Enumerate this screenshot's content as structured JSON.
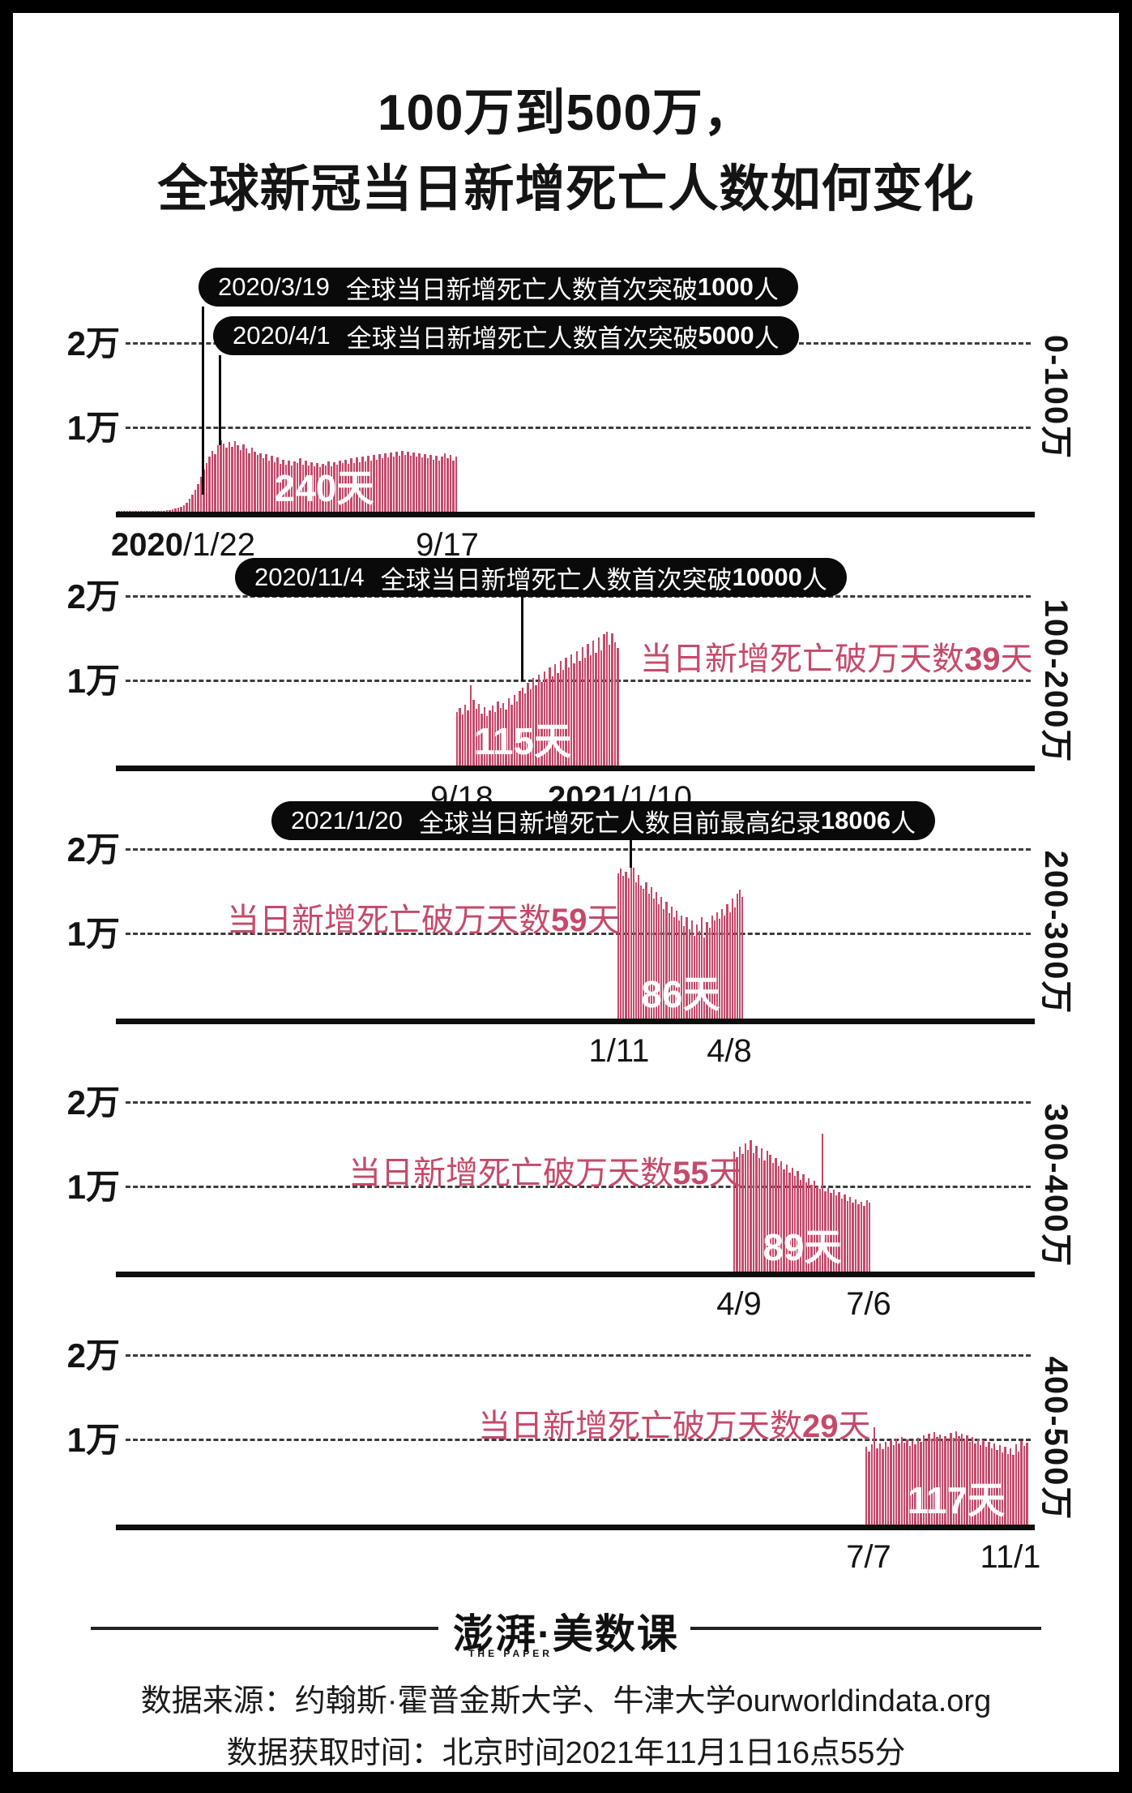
{
  "title": {
    "line1": "100万到500万，",
    "line2": "全球新冠当日新增死亡人数如何变化"
  },
  "colors": {
    "bar": "#c54a6a",
    "accent_text": "#c54a6a",
    "ink": "#111111"
  },
  "footer": {
    "brand": "澎湃·美数课",
    "brand_sub": "THE PAPER",
    "source": "数据来源：约翰斯·霍普金斯大学、牛津大学ourworldindata.org",
    "retrieved": "数据获取时间：北京时间2021年11月1日16点55分"
  },
  "chart_data": [
    {
      "type": "bar",
      "range_label": "0-100万",
      "y_ticks": [
        "2万",
        "1万"
      ],
      "ylim": [
        0,
        21000
      ],
      "x_start": {
        "bold": "2020",
        "rest": "/1/22"
      },
      "x_end": {
        "bold": "",
        "rest": "9/17"
      },
      "duration_label": "240天",
      "annotations": [
        {
          "date": "2020/3/19",
          "text": "全球当日新增死亡人数首次突破",
          "num": "1000",
          "suffix": "人"
        },
        {
          "date": "2020/4/1",
          "text": "全球当日新增死亡人数首次突破",
          "num": "5000",
          "suffix": "人"
        }
      ],
      "values": [
        15,
        25,
        20,
        30,
        25,
        35,
        40,
        30,
        45,
        50,
        60,
        55,
        70,
        80,
        90,
        110,
        130,
        160,
        200,
        260,
        340,
        450,
        600,
        800,
        1100,
        1500,
        2000,
        2600,
        3300,
        4100,
        5000,
        5800,
        6500,
        7200,
        6800,
        7900,
        8500,
        8100,
        7600,
        8300,
        7700,
        8400,
        7900,
        7300,
        8000,
        7500,
        6900,
        7600,
        7100,
        6700,
        6900,
        6300,
        6800,
        6100,
        6600,
        5900,
        6400,
        5700,
        6200,
        5600,
        6100,
        5500,
        6000,
        5800,
        6300,
        5600,
        6100,
        5500,
        5900,
        5400,
        5800,
        5300,
        5700,
        5500,
        6000,
        5400,
        5900,
        5600,
        6100,
        5800,
        6200,
        5700,
        6300,
        5800,
        6400,
        5900,
        6500,
        6000,
        6600,
        6100,
        6700,
        6200,
        6800,
        6300,
        6900,
        6400,
        7000,
        6500,
        7100,
        6600,
        7200,
        6700,
        7100,
        6600,
        7000,
        6500,
        6900,
        6400,
        6800,
        6300,
        6700,
        6200,
        6600,
        6100,
        6500,
        6900,
        6300,
        6700,
        6100,
        6500
      ]
    },
    {
      "type": "bar",
      "range_label": "100-200万",
      "y_ticks": [
        "2万",
        "1万"
      ],
      "ylim": [
        0,
        21000
      ],
      "x_start": {
        "bold": "",
        "rest": "9/18"
      },
      "x_end": {
        "bold": "2021",
        "rest": "/1/10"
      },
      "duration_label": "115天",
      "annotations": [
        {
          "date": "2020/11/4",
          "text": "全球当日新增死亡人数首次突破",
          "num": "10000",
          "suffix": "人"
        }
      ],
      "over10k_note": {
        "prefix": "当日新增死亡破万天数",
        "days": "39",
        "suffix": "天"
      },
      "values": [
        6300,
        6800,
        6100,
        7200,
        6500,
        9500,
        7800,
        6700,
        7300,
        6200,
        6900,
        5900,
        6500,
        7100,
        6300,
        7600,
        6800,
        7400,
        6600,
        8000,
        7200,
        8400,
        7600,
        8800,
        9200,
        8600,
        9800,
        9000,
        10400,
        9500,
        10800,
        9900,
        11200,
        10300,
        11600,
        10600,
        12000,
        11000,
        12400,
        11300,
        12800,
        11600,
        13200,
        12100,
        13600,
        12400,
        14000,
        12800,
        14400,
        13100,
        14800,
        13400,
        15200,
        13700,
        15600,
        15900,
        14300,
        15700,
        14600,
        13900
      ]
    },
    {
      "type": "bar",
      "range_label": "200-300万",
      "y_ticks": [
        "2万",
        "1万"
      ],
      "ylim": [
        0,
        21000
      ],
      "x_start": {
        "bold": "",
        "rest": "1/11"
      },
      "x_end": {
        "bold": "",
        "rest": "4/8"
      },
      "duration_label": "86天",
      "annotations": [
        {
          "date": "2021/1/20",
          "text": "全球当日新增死亡人数目前最高纪录",
          "num": "18006",
          "suffix": "人"
        }
      ],
      "over10k_note": {
        "prefix": "当日新增死亡破万天数",
        "days": "59",
        "suffix": "天"
      },
      "values": [
        17200,
        17800,
        16900,
        17400,
        16600,
        18006,
        17900,
        16200,
        17000,
        15800,
        15400,
        16200,
        14800,
        15600,
        14200,
        15000,
        13600,
        14400,
        13000,
        13800,
        12500,
        13300,
        12000,
        12800,
        11600,
        12200,
        11000,
        12000,
        10600,
        11600,
        9800,
        11200,
        10400,
        12000,
        9600,
        11400,
        10800,
        12200,
        11600,
        12600,
        11800,
        13000,
        12200,
        13600,
        12600,
        14200,
        13200,
        14800,
        15300,
        14400
      ]
    },
    {
      "type": "bar",
      "range_label": "300-400万",
      "y_ticks": [
        "2万",
        "1万"
      ],
      "ylim": [
        0,
        21000
      ],
      "x_start": {
        "bold": "",
        "rest": "4/9"
      },
      "x_end": {
        "bold": "",
        "rest": "7/6"
      },
      "duration_label": "89天",
      "over10k_note": {
        "prefix": "当日新增死亡破万天数",
        "days": "55",
        "suffix": "天"
      },
      "values": [
        14200,
        13600,
        14800,
        13900,
        15200,
        14400,
        15600,
        14000,
        14900,
        13500,
        14600,
        13200,
        14300,
        13800,
        12900,
        13500,
        12500,
        13100,
        12100,
        12700,
        11700,
        12300,
        11300,
        11900,
        10900,
        11500,
        10600,
        11100,
        10300,
        10800,
        10100,
        9800,
        16300,
        9500,
        9900,
        9300,
        9700,
        9000,
        9400,
        8700,
        9100,
        8400,
        8800,
        8200,
        8600,
        8000,
        8300,
        7800,
        8500,
        8200
      ]
    },
    {
      "type": "bar",
      "range_label": "400-500万",
      "y_ticks": [
        "2万",
        "1万"
      ],
      "ylim": [
        0,
        21000
      ],
      "x_start": {
        "bold": "",
        "rest": "7/7"
      },
      "x_end": {
        "bold": "",
        "rest": "11/1"
      },
      "duration_label": "117天",
      "over10k_note": {
        "prefix": "当日新增死亡破万天数",
        "days": "29",
        "suffix": "天"
      },
      "values": [
        9200,
        8700,
        9500,
        11500,
        9000,
        9600,
        8900,
        9800,
        9200,
        10000,
        9400,
        10200,
        9600,
        10400,
        9700,
        10100,
        9300,
        9900,
        9500,
        10300,
        9800,
        10600,
        10000,
        10800,
        10200,
        11000,
        10400,
        10700,
        9900,
        10500,
        10100,
        10900,
        10300,
        11100,
        10500,
        10800,
        10000,
        10600,
        9800,
        10400,
        9600,
        10200,
        9400,
        10000,
        9200,
        9800,
        9000,
        9600,
        8800,
        9400,
        8600,
        9200,
        8400,
        9000,
        8300,
        9500,
        8700,
        9900,
        9300,
        9700
      ]
    }
  ]
}
